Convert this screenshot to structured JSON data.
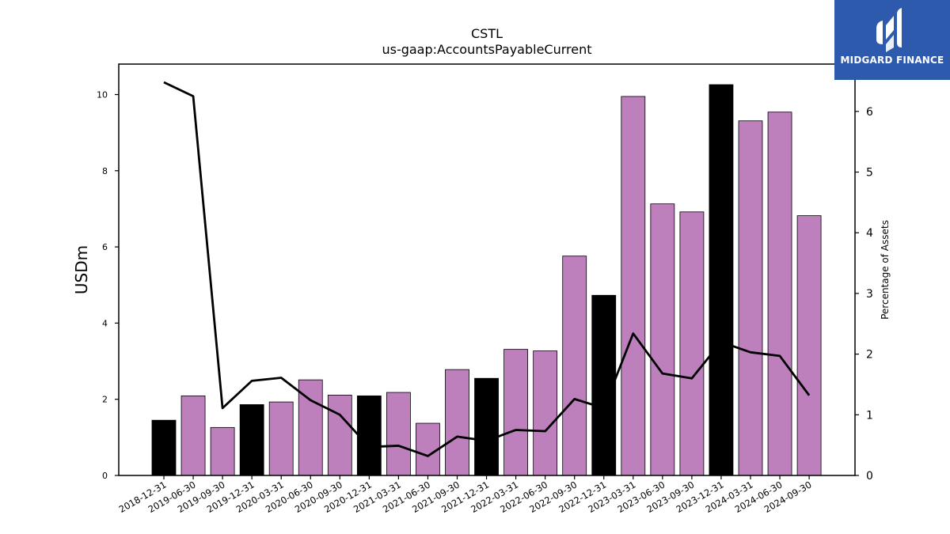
{
  "logo": {
    "text": "MIDGARD FINANCE",
    "bg_color": "#2d5aad"
  },
  "chart_data": {
    "type": "bar",
    "title": "CSTL",
    "subtitle": "us-gaap:AccountsPayableCurrent",
    "ylabel": "USDm",
    "ylabel_right": "Percentage of Assets",
    "ylim": [
      0,
      10.8
    ],
    "ylim_right": [
      0,
      6.78
    ],
    "yticks": [
      0,
      2,
      4,
      6,
      8,
      10
    ],
    "yticks_right": [
      0,
      1,
      2,
      3,
      4,
      5,
      6
    ],
    "grid": false,
    "categories": [
      "2018-12-31",
      "2019-06-30",
      "2019-09-30",
      "2019-12-31",
      "2020-03-31",
      "2020-06-30",
      "2020-09-30",
      "2020-12-31",
      "2021-03-31",
      "2021-06-30",
      "2021-09-30",
      "2021-12-31",
      "2022-03-31",
      "2022-06-30",
      "2022-09-30",
      "2022-12-31",
      "2023-03-31",
      "2023-06-30",
      "2023-09-30",
      "2023-12-31",
      "2024-03-31",
      "2024-06-30",
      "2024-09-30"
    ],
    "series": [
      {
        "type": "bar",
        "axis": "left",
        "values": [
          1.45,
          2.09,
          1.26,
          1.86,
          1.93,
          2.51,
          2.11,
          2.09,
          2.18,
          1.37,
          2.78,
          2.55,
          3.31,
          3.27,
          5.76,
          4.73,
          9.95,
          7.13,
          6.92,
          10.26,
          9.31,
          9.54,
          6.82
        ],
        "colors": [
          "#000000",
          "#bd80bd",
          "#bd80bd",
          "#000000",
          "#bd80bd",
          "#bd80bd",
          "#bd80bd",
          "#000000",
          "#bd80bd",
          "#bd80bd",
          "#bd80bd",
          "#000000",
          "#bd80bd",
          "#bd80bd",
          "#bd80bd",
          "#000000",
          "#bd80bd",
          "#bd80bd",
          "#bd80bd",
          "#000000",
          "#bd80bd",
          "#bd80bd",
          "#bd80bd"
        ]
      },
      {
        "type": "line",
        "axis": "right",
        "color": "#000000",
        "values": [
          6.48,
          6.25,
          1.11,
          1.56,
          1.61,
          1.24,
          1.0,
          0.47,
          0.49,
          0.32,
          0.64,
          0.57,
          0.75,
          0.73,
          1.26,
          1.11,
          2.34,
          1.68,
          1.6,
          2.2,
          2.03,
          1.97,
          1.32
        ]
      }
    ]
  }
}
